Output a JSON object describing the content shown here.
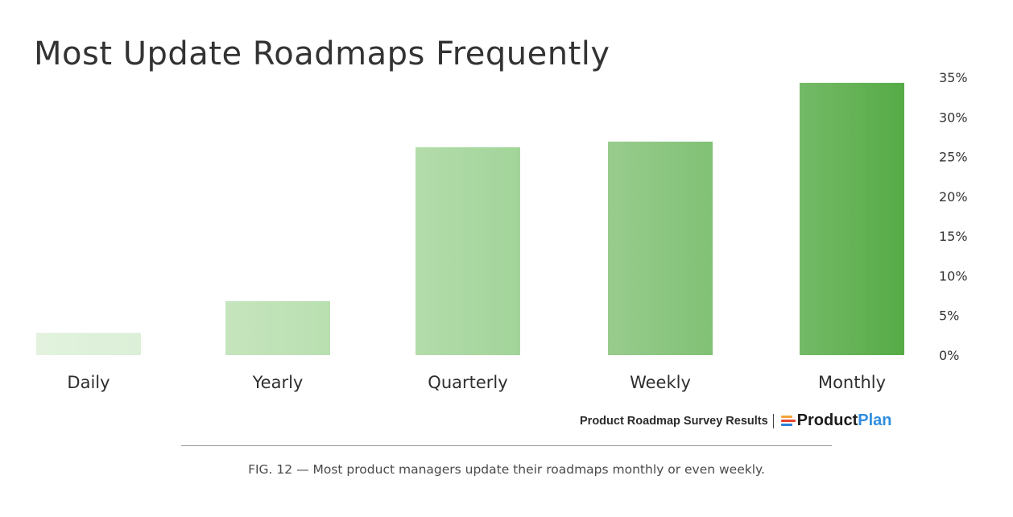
{
  "chart_data": {
    "type": "bar",
    "title": "Most Update Roadmaps Frequently",
    "categories": [
      "Daily",
      "Yearly",
      "Quarterly",
      "Weekly",
      "Monthly"
    ],
    "values": [
      2.8,
      6.8,
      26.2,
      26.9,
      34.3
    ],
    "ylim": [
      0,
      35
    ],
    "y_ticks": [
      "0%",
      "5%",
      "10%",
      "15%",
      "20%",
      "25%",
      "30%",
      "35%"
    ],
    "y_axis_position": "right",
    "xlabel": "",
    "ylabel": "",
    "grid": false,
    "legend": "none",
    "bar_colors": [
      "#dcefd7",
      "#b9dfb0",
      "#a2d499",
      "#81c175",
      "#56ab46"
    ]
  },
  "source": {
    "text": "Product Roadmap Survey Results",
    "logo_part1": "Product",
    "logo_part2": "Plan"
  },
  "caption": "FIG. 12  — Most product managers update their roadmaps monthly or even weekly."
}
